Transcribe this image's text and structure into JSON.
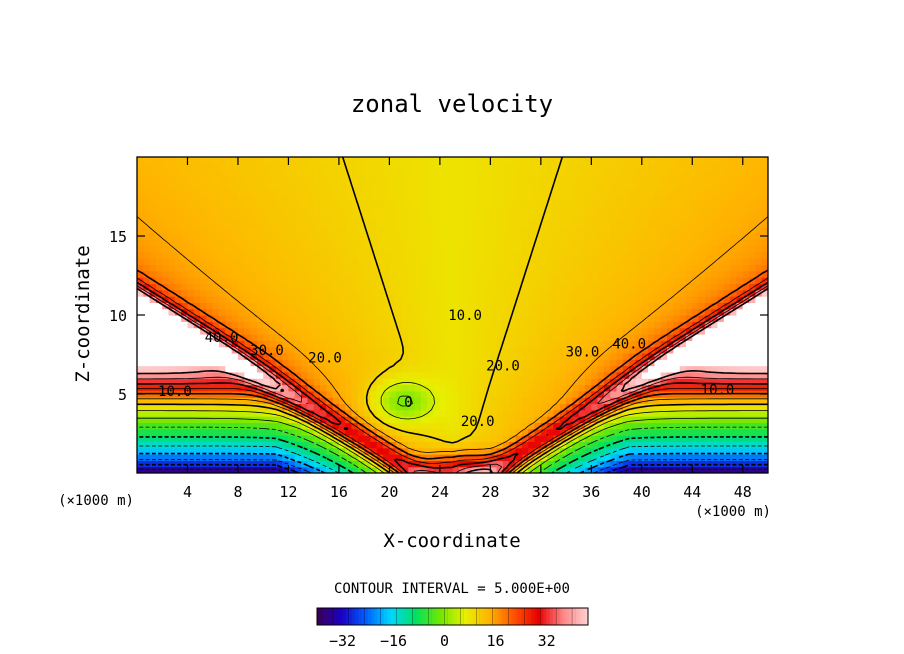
{
  "chart_data": {
    "type": "contour",
    "title": "zonal velocity",
    "xlabel": "X-coordinate",
    "ylabel": "Z-coordinate",
    "x_unit": "(×1000 m)",
    "z_unit": "(×1000 m)",
    "xlim": [
      0,
      50
    ],
    "zlim": [
      0,
      20
    ],
    "x_ticks": [
      4,
      8,
      12,
      16,
      20,
      24,
      28,
      32,
      36,
      40,
      44,
      48
    ],
    "z_ticks": [
      5,
      10,
      15
    ],
    "contour_interval_text": "CONTOUR INTERVAL = 5.000E+00",
    "contour_interval": 5,
    "colorbar": {
      "min": -40,
      "max": 45,
      "ticks": [
        -32,
        -16,
        0,
        16,
        32
      ],
      "colormap": "rainbow",
      "color_stops": [
        "#3c0050",
        "#1a00c8",
        "#0060ff",
        "#00d8ff",
        "#00e060",
        "#70e800",
        "#e8f000",
        "#ffb400",
        "#ff5000",
        "#e80000",
        "#ff8888",
        "#ffd0d0"
      ]
    },
    "contour_labels": [
      {
        "text": "40.0",
        "x": 6.7,
        "z": 8.6
      },
      {
        "text": "30.0",
        "x": 10.3,
        "z": 7.8
      },
      {
        "text": "20.0",
        "x": 14.9,
        "z": 7.3
      },
      {
        "text": "10.0",
        "x": 3.0,
        "z": 5.2
      },
      {
        "text": "10.0",
        "x": 26.0,
        "z": 10.0
      },
      {
        "text": "20.0",
        "x": 29.0,
        "z": 6.8
      },
      {
        "text": "30.0",
        "x": 35.3,
        "z": 7.7
      },
      {
        "text": "40.0",
        "x": 39.0,
        "z": 8.2
      },
      {
        "text": "10.0",
        "x": 46.0,
        "z": 5.3
      },
      {
        "text": "0",
        "x": 21.5,
        "z": 4.5
      },
      {
        "text": "20.0",
        "x": 27.0,
        "z": 3.3
      }
    ],
    "description_values": {
      "upper_far_field": "white (above colour range)",
      "surface_jet": 45,
      "central_column_min": 5,
      "bottom_corner_min": -40
    }
  }
}
